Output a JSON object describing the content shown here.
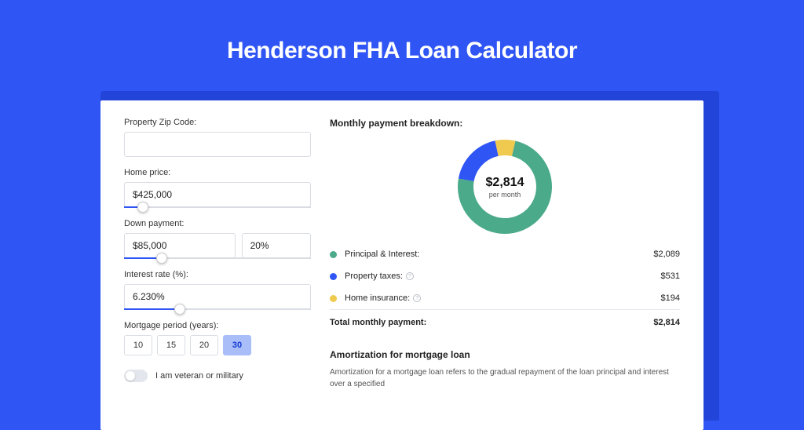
{
  "page": {
    "title": "Henderson FHA Loan Calculator",
    "background_color": "#2f55f4",
    "shadow_color": "#2344d8",
    "panel_bg": "#ffffff"
  },
  "form": {
    "zip": {
      "label": "Property Zip Code:",
      "value": ""
    },
    "home_price": {
      "label": "Home price:",
      "value": "$425,000",
      "slider_pct": 10
    },
    "down_payment": {
      "label": "Down payment:",
      "value": "$85,000",
      "pct": "20%",
      "slider_pct": 20
    },
    "interest": {
      "label": "Interest rate (%):",
      "value": "6.230%",
      "slider_pct": 30
    },
    "period": {
      "label": "Mortgage period (years):",
      "options": [
        "10",
        "15",
        "20",
        "30"
      ],
      "selected": "30"
    },
    "veteran": {
      "label": "I am veteran or military",
      "checked": false
    }
  },
  "breakdown": {
    "title": "Monthly payment breakdown:",
    "donut": {
      "center_value": "$2,814",
      "center_sub": "per month",
      "segments": [
        {
          "label": "Principal & Interest:",
          "value": "$2,089",
          "color": "#4aaa8a",
          "share": 0.742
        },
        {
          "label": "Property taxes:",
          "value": "$531",
          "color": "#2f55f4",
          "share": 0.189,
          "info": true
        },
        {
          "label": "Home insurance:",
          "value": "$194",
          "color": "#f0c94f",
          "share": 0.069,
          "info": true
        }
      ],
      "ring_thickness": 20,
      "radius": 60
    },
    "total": {
      "label": "Total monthly payment:",
      "value": "$2,814"
    }
  },
  "amortization": {
    "title": "Amortization for mortgage loan",
    "text": "Amortization for a mortgage loan refers to the gradual repayment of the loan principal and interest over a specified"
  }
}
